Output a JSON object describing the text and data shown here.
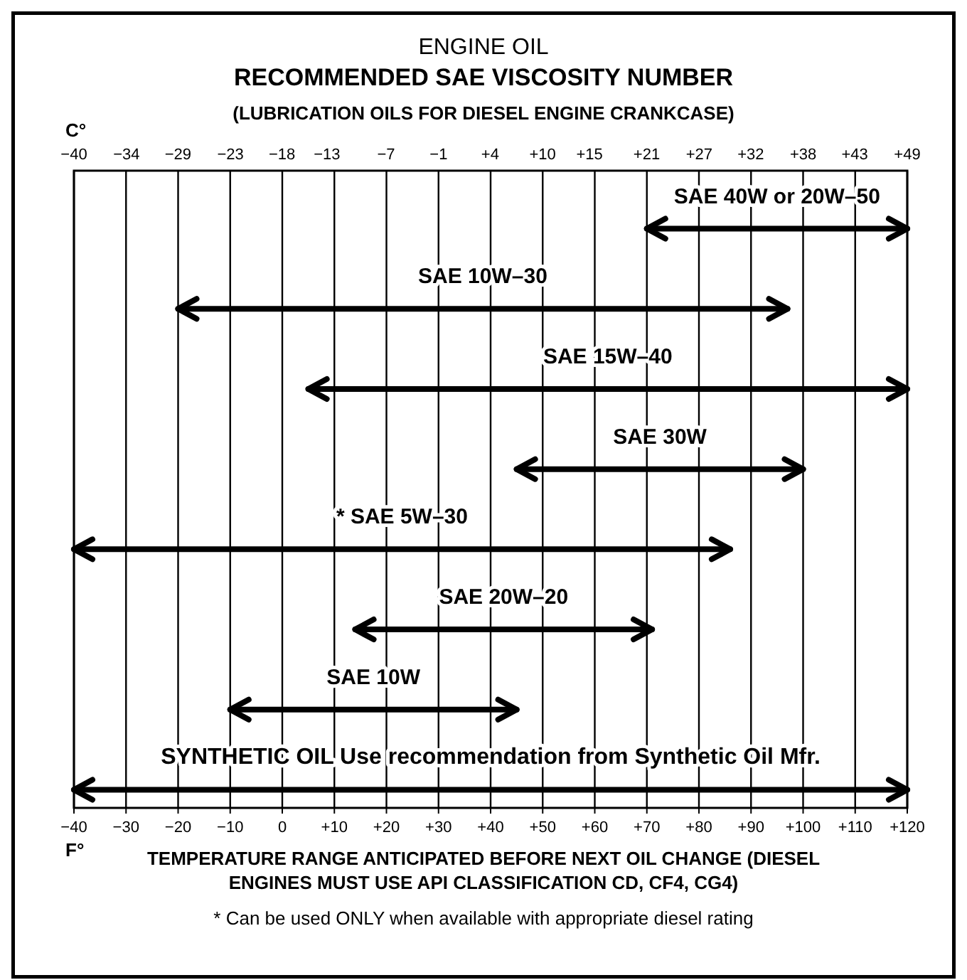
{
  "chart_data": {
    "type": "bar",
    "orientation": "horizontal",
    "title": "ENGINE OIL",
    "subtitle": "RECOMMENDED SAE VISCOSITY NUMBER",
    "annotations": [
      "(LUBRICATION OILS FOR DIESEL ENGINE CRANKCASE)",
      "F°",
      "* Can be used ONLY when available with appropriate diesel rating"
    ],
    "xlabel": "TEMPERATURE RANGE ANTICIPATED BEFORE NEXT OIL CHANGE (DIESEL ENGINES MUST USE API CLASSIFICATION CD, CF4, CG4)",
    "x2label": "C°",
    "categories": [
      "SAE 40W or 20W–50",
      "SAE 10W–30",
      "SAE 15W–40",
      "SAE 30W",
      "* SAE 5W–30",
      "SAE 20W–20",
      "SAE 10W",
      "SYNTHETIC OIL Use recommendation from Synthetic Oil Mfr."
    ],
    "base": [
      70,
      -20,
      5,
      45,
      -40,
      14,
      -10,
      -40
    ],
    "values": [
      50,
      117,
      115,
      55,
      126,
      57,
      55,
      160
    ],
    "color": "#000000",
    "xlim": [
      -40,
      120
    ],
    "xticks": [
      {
        "value": -40,
        "label": "−40"
      },
      {
        "value": -30,
        "label": "−30"
      },
      {
        "value": -20,
        "label": "−20"
      },
      {
        "value": -10,
        "label": "−10"
      },
      {
        "value": 0,
        "label": "0"
      },
      {
        "value": 10,
        "label": "+10"
      },
      {
        "value": 20,
        "label": "+20"
      },
      {
        "value": 30,
        "label": "+30"
      },
      {
        "value": 40,
        "label": "+40"
      },
      {
        "value": 50,
        "label": "+50"
      },
      {
        "value": 60,
        "label": "+60"
      },
      {
        "value": 70,
        "label": "+70"
      },
      {
        "value": 80,
        "label": "+80"
      },
      {
        "value": 90,
        "label": "+90"
      },
      {
        "value": 100,
        "label": "+100"
      },
      {
        "value": 110,
        "label": "+110"
      },
      {
        "value": 120,
        "label": "+120"
      }
    ],
    "x2lim": [
      -40,
      48.9
    ],
    "x2ticks": [
      {
        "value": -40,
        "label": "−40"
      },
      {
        "value": -34.4,
        "label": "−34"
      },
      {
        "value": -28.9,
        "label": "−29"
      },
      {
        "value": -23.3,
        "label": "−23"
      },
      {
        "value": -17.8,
        "label": "−18"
      },
      {
        "value": -13,
        "label": "−13"
      },
      {
        "value": -6.7,
        "label": "−7"
      },
      {
        "value": -1.1,
        "label": "−1"
      },
      {
        "value": 4.4,
        "label": "+4"
      },
      {
        "value": 10,
        "label": "+10"
      },
      {
        "value": 15,
        "label": "+15"
      },
      {
        "value": 21.1,
        "label": "+21"
      },
      {
        "value": 26.7,
        "label": "+27"
      },
      {
        "value": 32.2,
        "label": "+32"
      },
      {
        "value": 37.8,
        "label": "+38"
      },
      {
        "value": 43.3,
        "label": "+43"
      },
      {
        "value": 48.9,
        "label": "+49"
      }
    ],
    "grid": "x"
  }
}
